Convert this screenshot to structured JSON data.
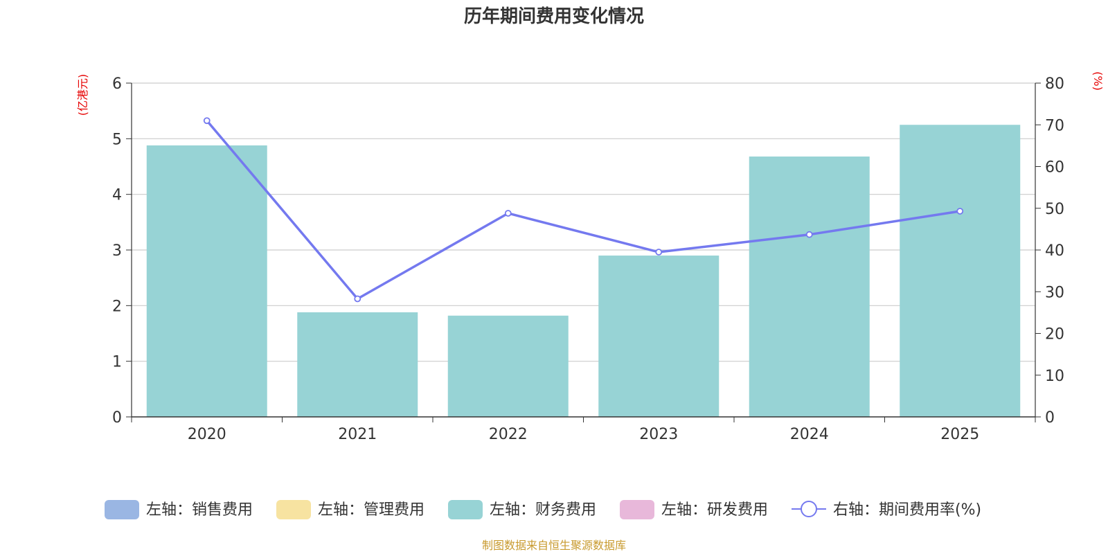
{
  "chart_data": {
    "type": "bar+line",
    "title": "历年期间费用变化情况",
    "left_axis_unit": "(亿港元)",
    "right_axis_unit": "(%)",
    "categories": [
      "2020",
      "2021",
      "2022",
      "2023",
      "2024",
      "2025"
    ],
    "left_ylim": [
      0,
      6
    ],
    "left_ticks": [
      "0",
      "1",
      "2",
      "3",
      "4",
      "5",
      "6"
    ],
    "right_ylim": [
      0,
      80
    ],
    "right_ticks": [
      "0",
      "10",
      "20",
      "30",
      "40",
      "50",
      "60",
      "70",
      "80"
    ],
    "series": [
      {
        "name": "左轴：销售费用",
        "type": "bar",
        "axis": "left",
        "color": "#9ab6e3",
        "values": [
          0,
          0,
          0,
          0,
          0,
          0
        ]
      },
      {
        "name": "左轴：管理费用",
        "type": "bar",
        "axis": "left",
        "color": "#f7e3a1",
        "values": [
          0,
          0,
          0,
          0,
          0,
          0
        ]
      },
      {
        "name": "左轴：财务费用",
        "type": "bar",
        "axis": "left",
        "color": "#97d3d5",
        "values": [
          4.88,
          1.88,
          1.82,
          2.9,
          4.68,
          5.25
        ]
      },
      {
        "name": "左轴：研发费用",
        "type": "bar",
        "axis": "left",
        "color": "#e8b8da",
        "values": [
          0,
          0,
          0,
          0,
          0,
          0
        ]
      },
      {
        "name": "右轴：期间费用率(%)",
        "type": "line",
        "axis": "right",
        "color": "#7479ef",
        "values": [
          71,
          28.3,
          48.8,
          39.5,
          43.7,
          49.3
        ]
      }
    ],
    "grid": true,
    "legend_position": "bottom"
  },
  "source": "制图数据来自恒生聚源数据库"
}
